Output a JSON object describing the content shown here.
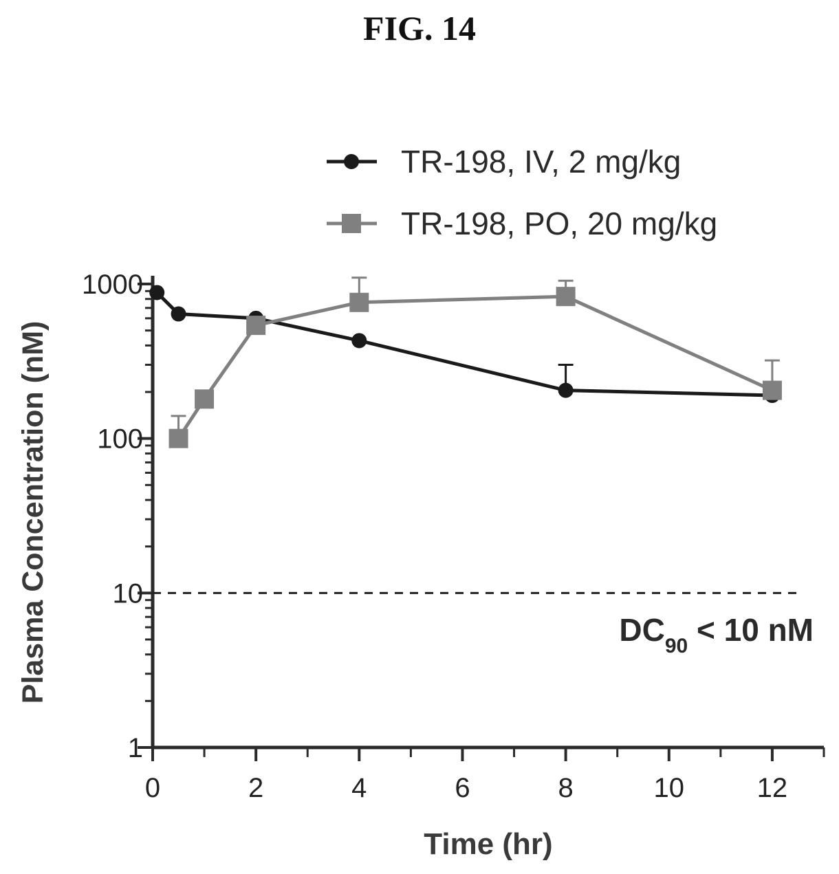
{
  "figure_label": "FIG. 14",
  "chart_data": {
    "type": "line",
    "title": "",
    "xlabel": "Time (hr)",
    "ylabel": "Plasma Concentration (nM)",
    "xlim": [
      0,
      13
    ],
    "ylim": [
      1,
      1000
    ],
    "yscale": "log",
    "xticks": [
      0,
      2,
      4,
      6,
      8,
      10,
      12
    ],
    "yticks": [
      1,
      10,
      100,
      1000
    ],
    "grid": false,
    "legend_position": "top-right",
    "series": [
      {
        "name": "TR-198, IV, 2 mg/kg",
        "marker": "circle",
        "color": "#1a1a1a",
        "x": [
          0.083,
          0.5,
          2,
          4,
          8,
          12
        ],
        "y": [
          880,
          640,
          600,
          430,
          205,
          190
        ],
        "error_upper": [
          null,
          null,
          null,
          null,
          300,
          null
        ]
      },
      {
        "name": "TR-198, PO, 20 mg/kg",
        "marker": "square",
        "color": "#808080",
        "x": [
          0.5,
          1,
          2,
          4,
          8,
          12
        ],
        "y": [
          100,
          180,
          540,
          760,
          830,
          205
        ],
        "error_upper": [
          140,
          null,
          null,
          1100,
          1050,
          320
        ]
      }
    ],
    "reference_line": {
      "y": 10,
      "style": "dashed",
      "label_main": "DC",
      "label_sub": "90",
      "label_rest": " < 10 nM"
    }
  }
}
